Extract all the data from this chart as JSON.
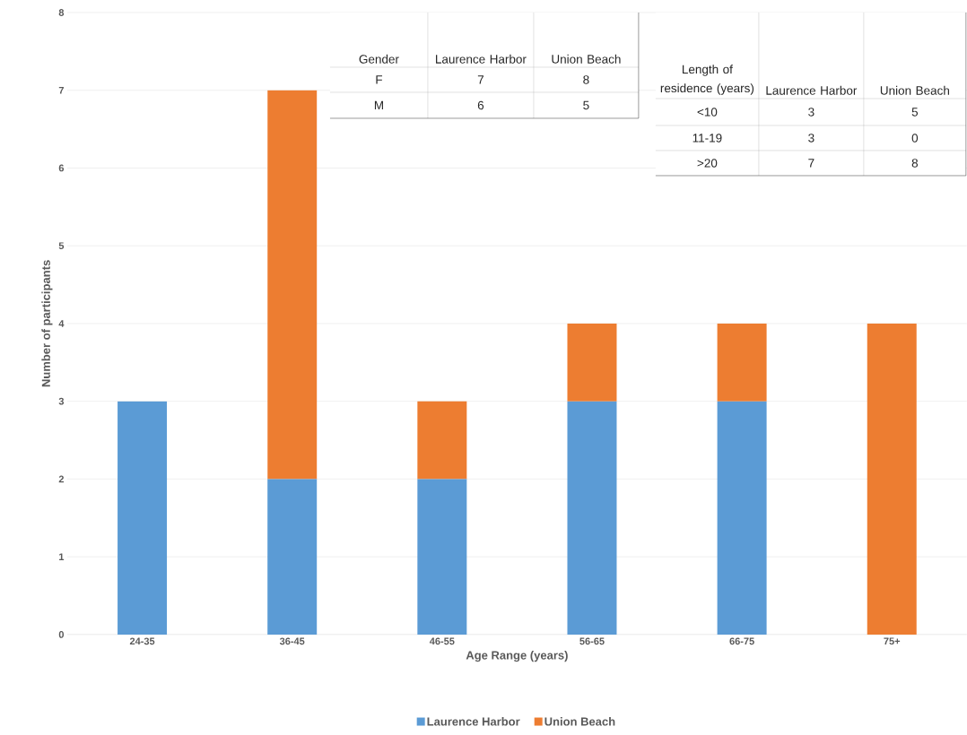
{
  "chart_data": {
    "type": "bar",
    "stacked": true,
    "xlabel": "Age Range (years)",
    "ylabel": "Number of participants",
    "categories": [
      "24-35",
      "36-45",
      "46-55",
      "56-65",
      "66-75",
      "75+"
    ],
    "series": [
      {
        "name": "Laurence Harbor",
        "color": "#5b9bd5",
        "values": [
          3,
          2,
          2,
          3,
          3,
          0
        ]
      },
      {
        "name": "Union Beach",
        "color": "#ed7d31",
        "values": [
          0,
          5,
          1,
          1,
          1,
          4
        ]
      }
    ],
    "ylim": [
      0,
      8
    ],
    "yticks": [
      0,
      1,
      2,
      3,
      4,
      5,
      6,
      7,
      8
    ],
    "grid": "y",
    "legend": "bottom",
    "annotations": [
      "Gender",
      "Laurence Harbor",
      "Union Beach",
      "F",
      "7",
      "8",
      "M",
      "6",
      "5",
      "Length of residence (years)",
      "Laurence Harbor",
      "Union Beach",
      "<10",
      "3",
      "5",
      "11-19",
      "3",
      "0",
      ">20",
      "7",
      "8"
    ]
  }
}
